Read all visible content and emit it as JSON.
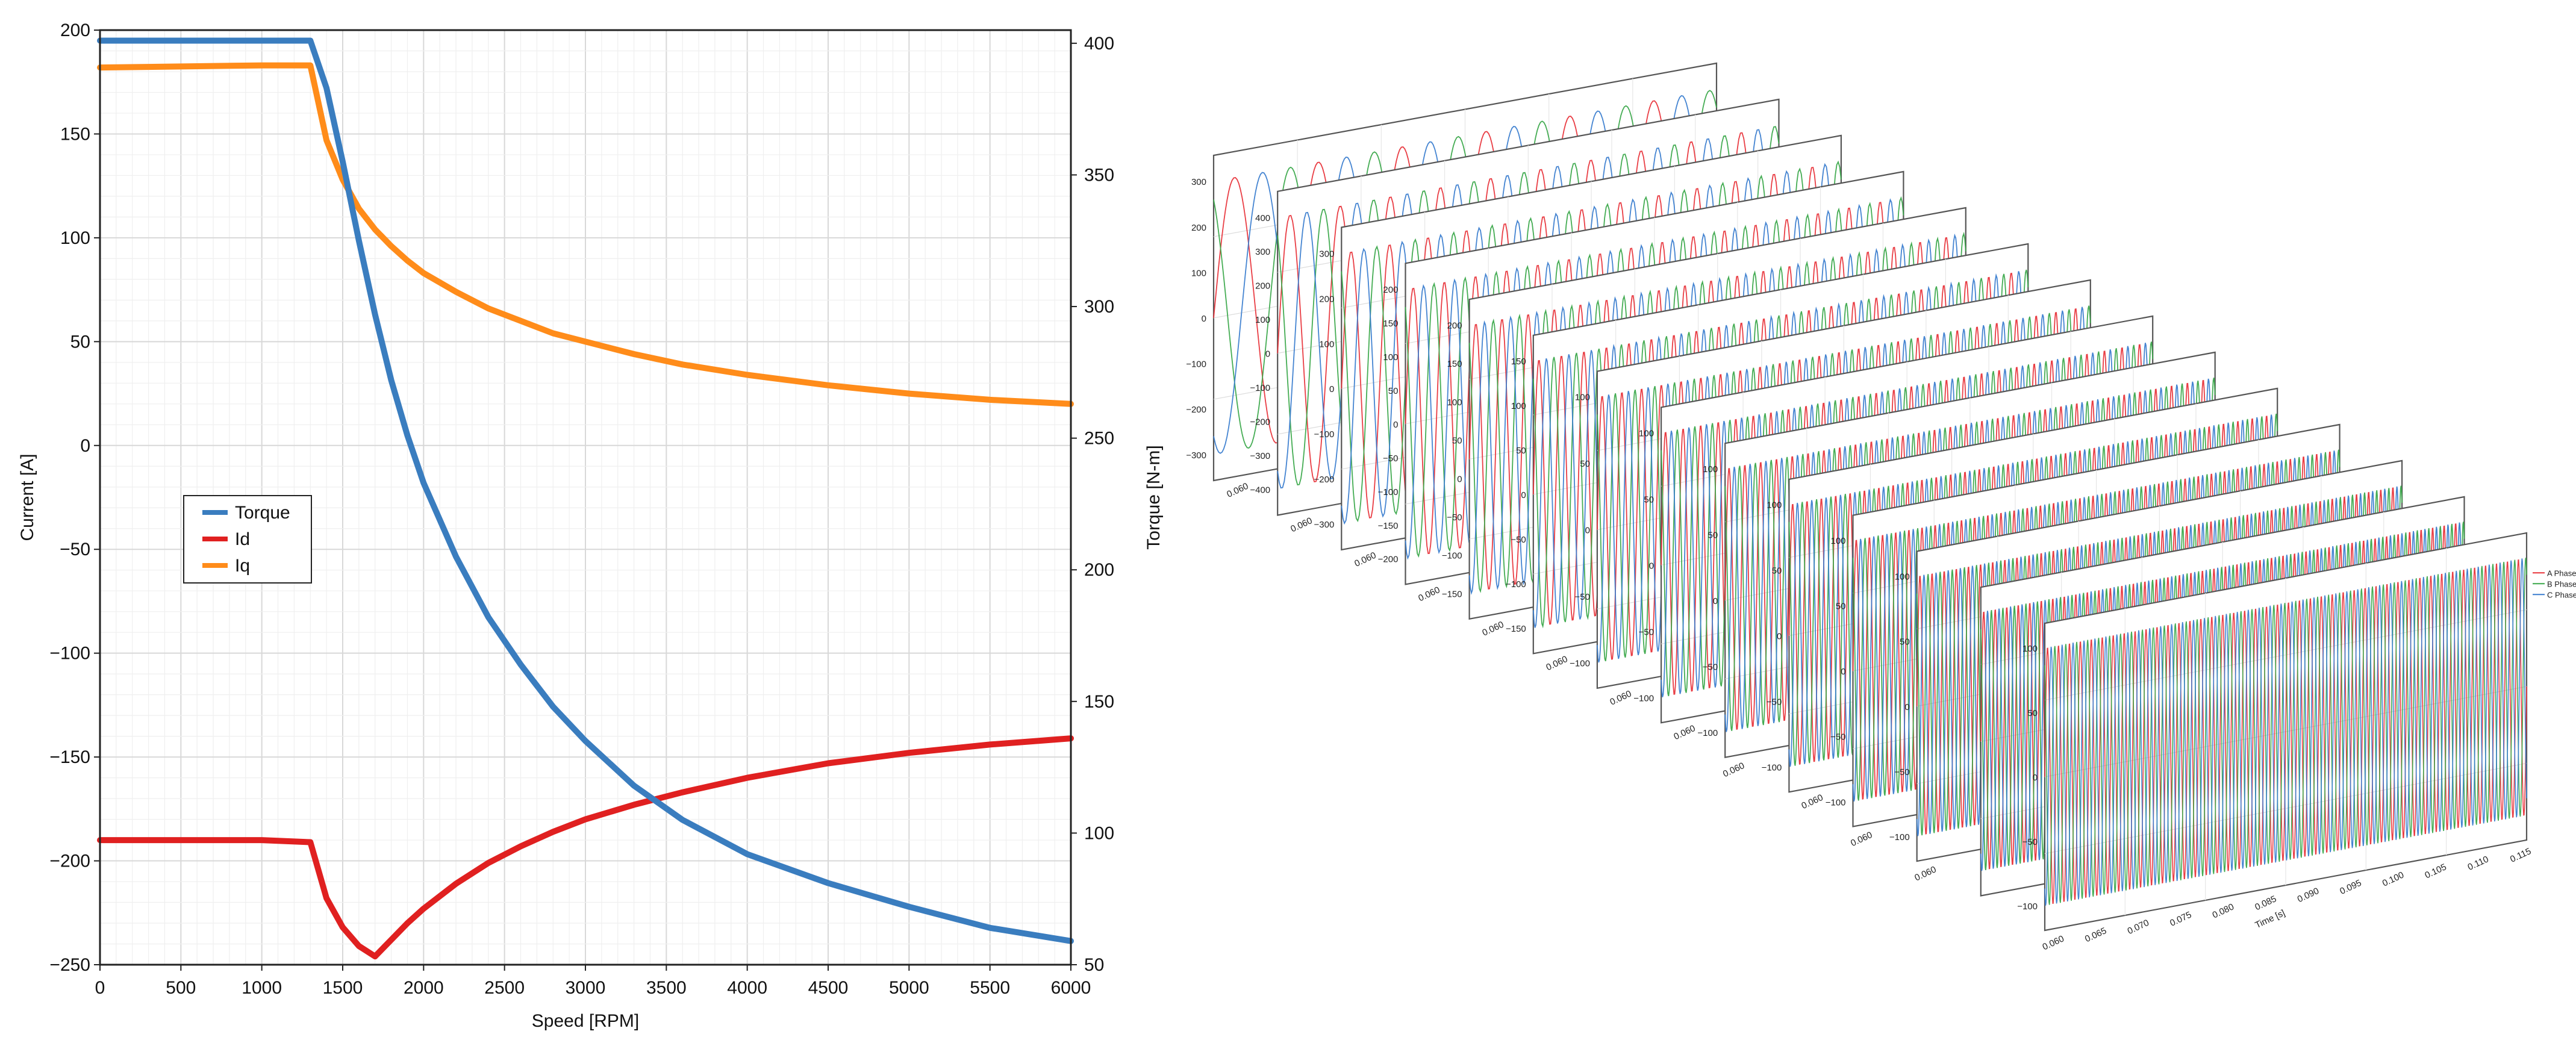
{
  "chart_data": [
    {
      "type": "line",
      "xlabel": "Speed [RPM]",
      "ylabel": "Current [A]",
      "y2label": "Torque [N-m]",
      "xlim": [
        0,
        6000
      ],
      "ylim": [
        -250,
        200
      ],
      "y2lim": [
        50,
        405
      ],
      "xticks": [
        "0",
        "500",
        "1000",
        "1500",
        "2000",
        "2500",
        "3000",
        "3500",
        "4000",
        "4500",
        "5000",
        "5500",
        "6000"
      ],
      "yticks": [
        "200",
        "150",
        "100",
        "50",
        "0",
        "−50",
        "−100",
        "−150",
        "−200",
        "−250"
      ],
      "y2ticks": [
        "400",
        "350",
        "300",
        "250",
        "200",
        "150",
        "100",
        "50"
      ],
      "grid": true,
      "legend_position": "left",
      "series": [
        {
          "name": "Torque",
          "axis": "right",
          "color": "#3a7dbf",
          "x": [
            0,
            1000,
            1300,
            1400,
            1500,
            1600,
            1700,
            1800,
            1900,
            2000,
            2200,
            2400,
            2600,
            2800,
            3000,
            3300,
            3600,
            4000,
            4500,
            5000,
            5500,
            6000
          ],
          "y": [
            401,
            401,
            401,
            383,
            355,
            325,
            297,
            272,
            251,
            233,
            205,
            182,
            164,
            148,
            135,
            118,
            105,
            92,
            81,
            72,
            64,
            59
          ]
        },
        {
          "name": "Id",
          "axis": "left",
          "color": "#e02020",
          "x": [
            0,
            1000,
            1300,
            1400,
            1500,
            1600,
            1700,
            1800,
            1900,
            2000,
            2200,
            2400,
            2600,
            2800,
            3000,
            3300,
            3600,
            4000,
            4500,
            5000,
            5500,
            6000
          ],
          "y": [
            -190,
            -190,
            -191,
            -218,
            -232,
            -241,
            -246,
            -238,
            -230,
            -223,
            -211,
            -201,
            -193,
            -186,
            -180,
            -173,
            -167,
            -160,
            -153,
            -148,
            -144,
            -141
          ]
        },
        {
          "name": "Iq",
          "axis": "left",
          "color": "#ff8c1a",
          "x": [
            0,
            1000,
            1300,
            1400,
            1500,
            1600,
            1700,
            1800,
            1900,
            2000,
            2200,
            2400,
            2600,
            2800,
            3000,
            3300,
            3600,
            4000,
            4500,
            5000,
            5500,
            6000
          ],
          "y": [
            182,
            183,
            183,
            147,
            128,
            114,
            104,
            96,
            89,
            83,
            74,
            66,
            60,
            54,
            50,
            44,
            39,
            34,
            29,
            25,
            22,
            20
          ]
        }
      ]
    },
    {
      "type": "line",
      "xlabel": "Time [s]",
      "legend": [
        "A Phase",
        "B Phase",
        "C Phase"
      ],
      "legend_position": "right",
      "panel_count": 14,
      "series_colors": [
        "#e8333a",
        "#3aa84a",
        "#3a7dcf"
      ],
      "front_panel": {
        "ylim": [
          -100,
          100
        ],
        "yticks": [
          "100",
          "50",
          "0",
          "−50",
          "−100"
        ],
        "xticks": [
          "0.060",
          "0.065",
          "0.070",
          "0.075",
          "0.080",
          "0.085",
          "0.090",
          "0.095",
          "0.100",
          "0.105",
          "0.110",
          "0.115"
        ],
        "x_range": [
          0.06,
          0.118
        ],
        "amplitude": 100,
        "cycles": 44
      },
      "panels_back_to_front": [
        {
          "yticks": [
            "300",
            "200",
            "100",
            "0",
            "−100",
            "−200",
            "−300"
          ],
          "xticks": [
            "0.060"
          ],
          "cycles": 6,
          "amplitude": 300
        },
        {
          "yticks": [
            "400",
            "300",
            "200",
            "100",
            "0",
            "−100",
            "−200",
            "−300",
            "−400"
          ],
          "xticks": [
            "0.060"
          ],
          "cycles": 10,
          "amplitude": 400
        },
        {
          "yticks": [
            "300",
            "200",
            "100",
            "0",
            "−100",
            "−200",
            "−300"
          ],
          "xticks": [
            "0.060"
          ],
          "cycles": 13,
          "amplitude": 300
        },
        {
          "yticks": [
            "200",
            "150",
            "100",
            "50",
            "0",
            "−50",
            "−100",
            "−150",
            "−200"
          ],
          "xticks": [
            "0.060"
          ],
          "cycles": 16,
          "amplitude": 200
        },
        {
          "yticks": [
            "200",
            "150",
            "100",
            "50",
            "0",
            "−50",
            "−100",
            "−150"
          ],
          "xticks": [
            "0.060"
          ],
          "cycles": 19,
          "amplitude": 170
        },
        {
          "yticks": [
            "150",
            "100",
            "50",
            "0",
            "−50",
            "−100",
            "−150"
          ],
          "xticks": [
            "0.060"
          ],
          "cycles": 22,
          "amplitude": 150
        },
        {
          "yticks": [
            "100",
            "50",
            "0",
            "−50",
            "−100"
          ],
          "xticks": [
            "0.060"
          ],
          "cycles": 25,
          "amplitude": 100
        },
        {
          "yticks": [
            "100",
            "50",
            "0",
            "−50",
            "−100"
          ],
          "xticks": [
            "0.060"
          ],
          "cycles": 28,
          "amplitude": 100
        },
        {
          "yticks": [
            "100",
            "50",
            "0",
            "−50",
            "−100"
          ],
          "xticks": [
            "0.060",
            "0.1"
          ],
          "cycles": 31,
          "amplitude": 100
        },
        {
          "yticks": [
            "100",
            "50",
            "0",
            "−50",
            "−100"
          ],
          "xticks": [
            "0.060"
          ],
          "cycles": 34,
          "amplitude": 100
        },
        {
          "yticks": [
            "100",
            "50",
            "0",
            "−50",
            "−100"
          ],
          "xticks": [
            "0.060",
            "0.065"
          ],
          "cycles": 37,
          "amplitude": 100
        },
        {
          "yticks": [
            "100",
            "50",
            "0",
            "−50",
            "−100"
          ],
          "xticks": [
            "0.060",
            "0"
          ],
          "cycles": 40,
          "amplitude": 100
        },
        {
          "yticks": [],
          "xticks": [],
          "cycles": 42,
          "amplitude": 100
        }
      ]
    }
  ]
}
